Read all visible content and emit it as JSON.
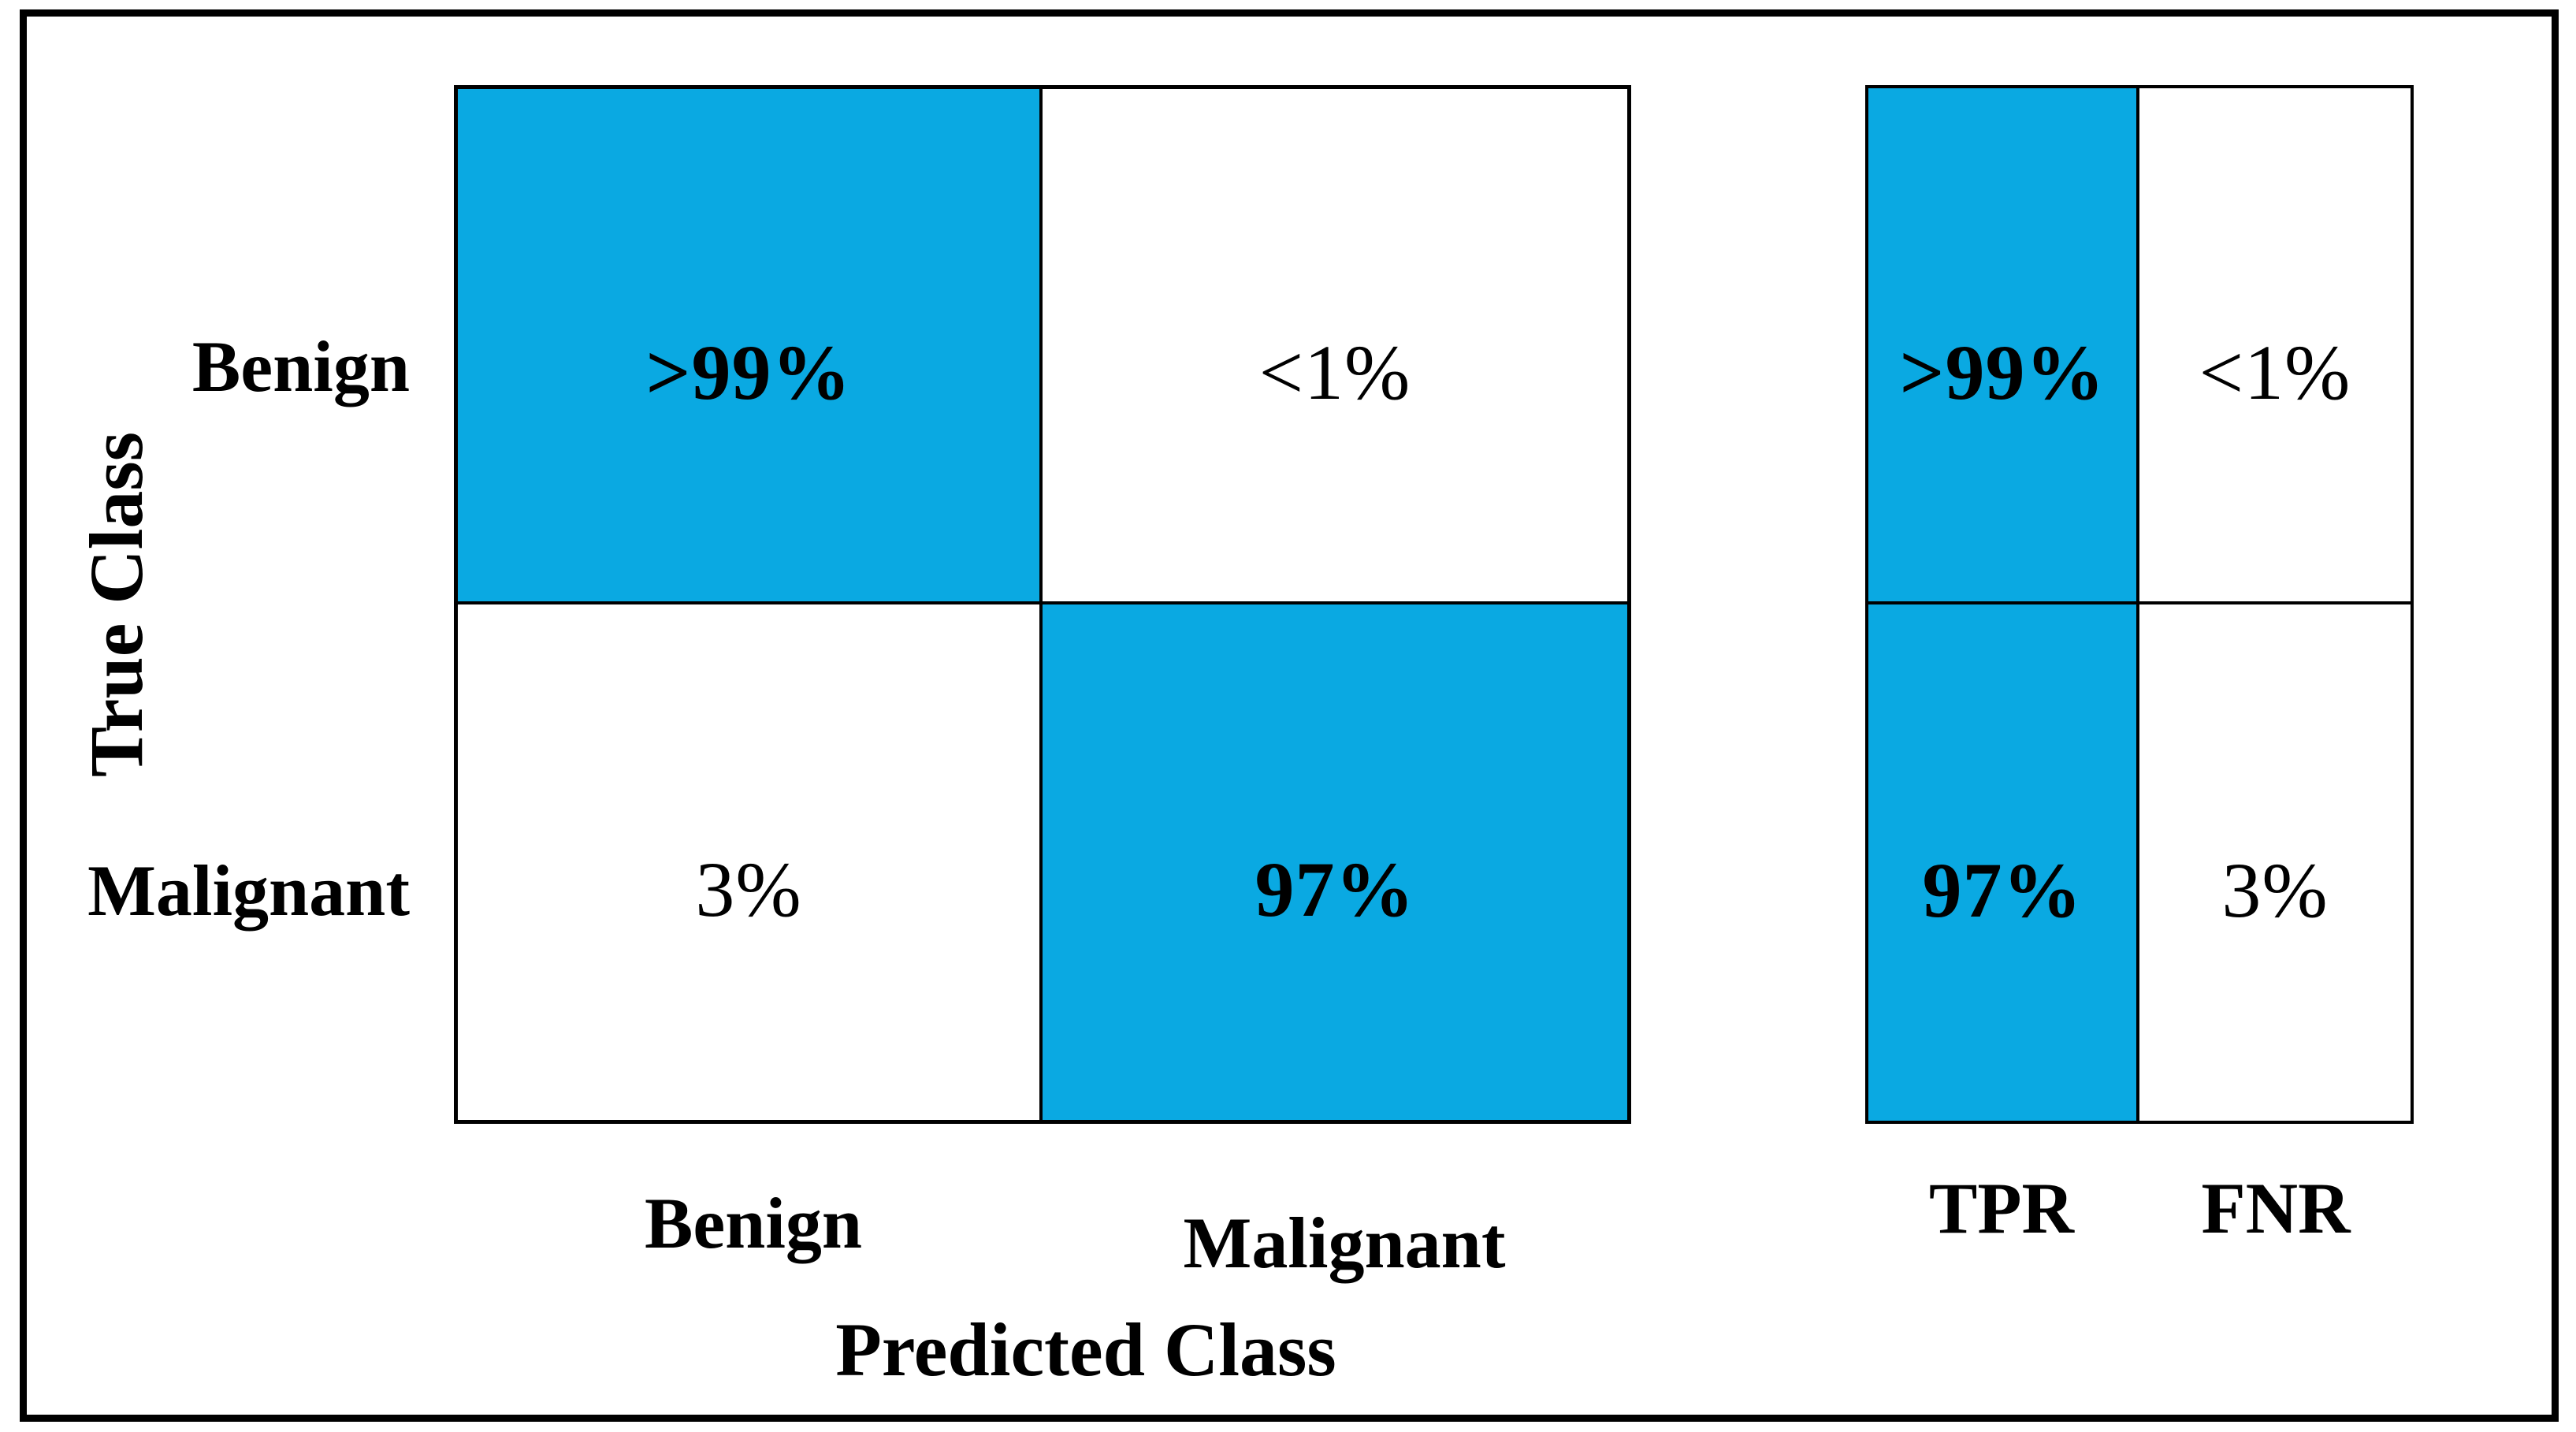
{
  "chart_data": {
    "type": "heatmap",
    "subtype": "confusion-matrix",
    "title": "",
    "xlabel": "Predicted Class",
    "ylabel": "True Class",
    "x_categories": [
      "Benign",
      "Malignant"
    ],
    "y_categories": [
      "Benign",
      "Malignant"
    ],
    "cells": [
      [
        ">99%",
        "<1%"
      ],
      [
        "3%",
        "97%"
      ]
    ],
    "cell_highlighted": [
      [
        true,
        false
      ],
      [
        false,
        true
      ]
    ],
    "summary_columns": [
      "TPR",
      "FNR"
    ],
    "summary_cells": [
      [
        ">99%",
        "<1%"
      ],
      [
        "97%",
        "3%"
      ]
    ],
    "summary_highlighted": [
      [
        true,
        false
      ],
      [
        true,
        false
      ]
    ],
    "highlight_color": "#0AA9E2",
    "background_color": "#FFFFFF",
    "legend_position": "none",
    "grid": "2x2 confusion matrix plus 2x2 TPR/FNR summary panel"
  }
}
